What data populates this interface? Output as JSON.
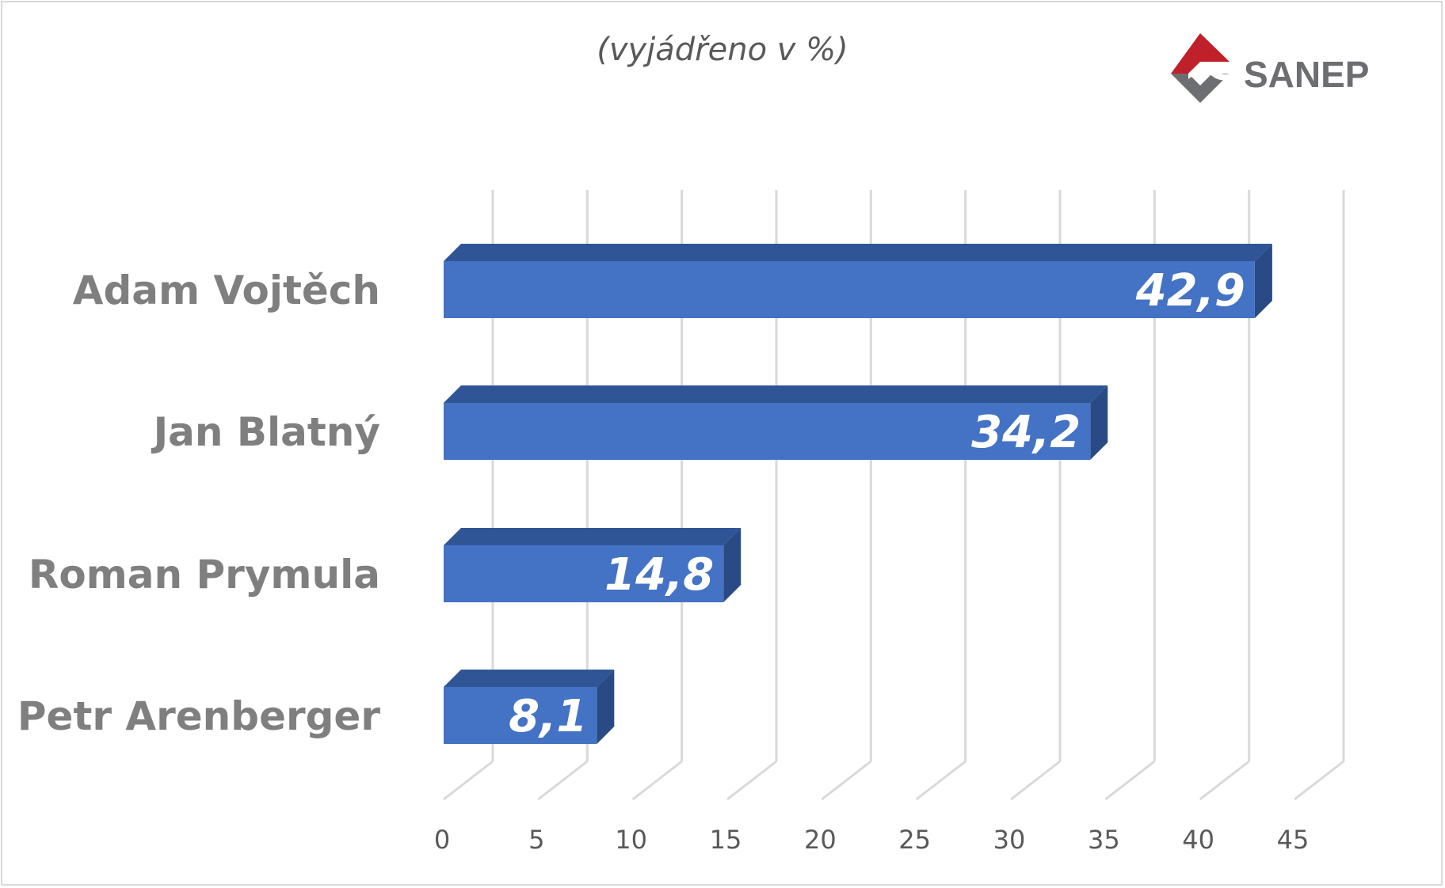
{
  "subtitle": "(vyjádřeno v %)",
  "logo": {
    "text": "SANEP",
    "icon": "sanep-diamond-logo-icon"
  },
  "colors": {
    "bar_front": "#4472c4",
    "bar_top": "#2f5597",
    "bar_side": "#2a4a86",
    "grid": "#d9d9d9",
    "category_text": "#7f7f7f",
    "tick_text": "#595959",
    "logo_red": "#c0202a",
    "logo_gray": "#6d6e71"
  },
  "chart_data": {
    "type": "bar",
    "orientation": "horizontal",
    "style": "3d-clustered",
    "subtitle": "(vyjádřeno v %)",
    "categories": [
      "Adam Vojtěch",
      "Jan Blatný",
      "Roman Prymula",
      "Petr Arenberger"
    ],
    "values": [
      42.9,
      34.2,
      14.8,
      8.1
    ],
    "data_labels": [
      "42,9",
      "34,2",
      "14,8",
      "8,1"
    ],
    "xlim": [
      0,
      45
    ],
    "x_ticks": [
      0,
      5,
      10,
      15,
      20,
      25,
      30,
      35,
      40,
      45
    ],
    "grid": true,
    "legend": "none"
  }
}
